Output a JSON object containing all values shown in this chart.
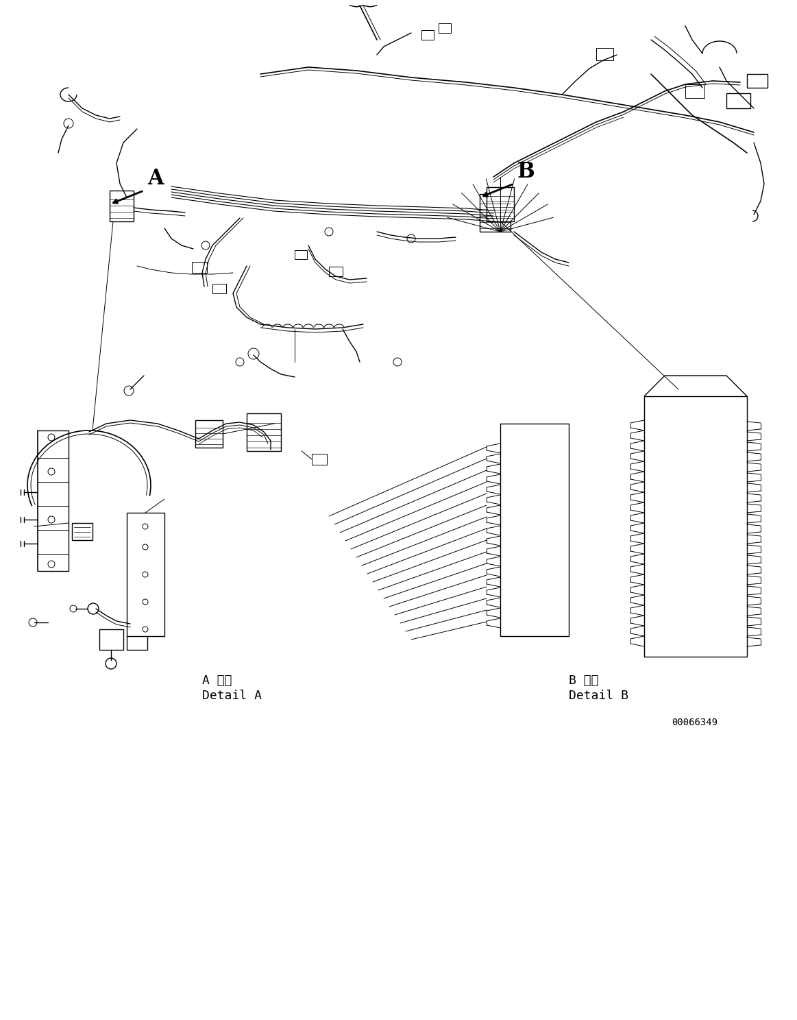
{
  "bg_color": "#ffffff",
  "line_color": "#000000",
  "fig_width": 11.63,
  "fig_height": 14.88,
  "dpi": 100,
  "label_A": "A",
  "label_B": "B",
  "text_detail_a_jp": "A 詳細",
  "text_detail_a_en": "Detail A",
  "text_detail_b_jp": "B 詳細",
  "text_detail_b_en": "Detail B",
  "part_number": "00066349",
  "lw_main": 1.2,
  "lw_thin": 0.7,
  "lw_medium": 1.0
}
